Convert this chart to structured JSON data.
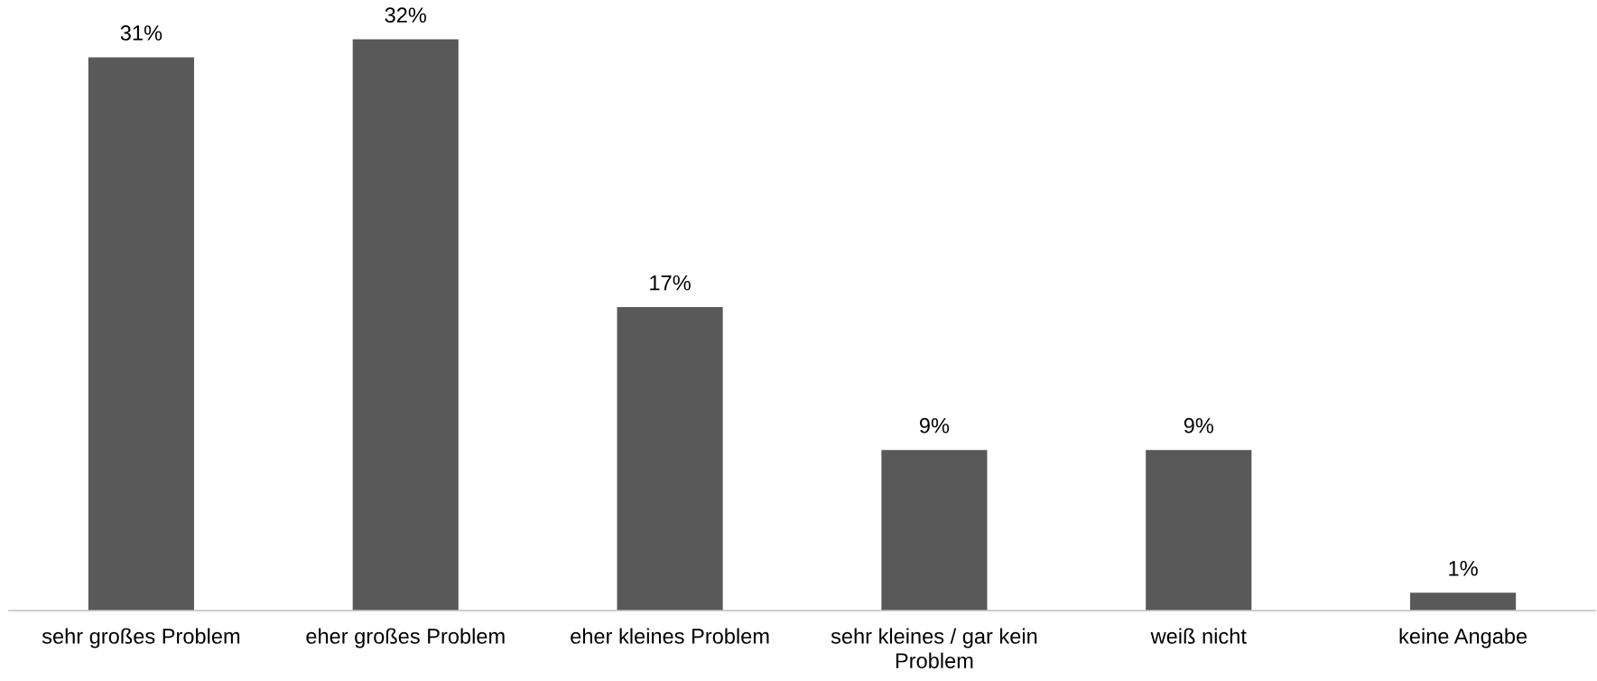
{
  "chart_data": {
    "type": "bar",
    "categories": [
      "sehr großes Problem",
      "eher großes Problem",
      "eher kleines Problem",
      "sehr kleines / gar kein Problem",
      "weiß nicht",
      "keine Angabe"
    ],
    "values": [
      31,
      32,
      17,
      9,
      9,
      1
    ],
    "value_labels": [
      "31%",
      "32%",
      "17%",
      "9%",
      "9%",
      "1%"
    ],
    "color": "#595959",
    "tick_labels": "x"
  }
}
